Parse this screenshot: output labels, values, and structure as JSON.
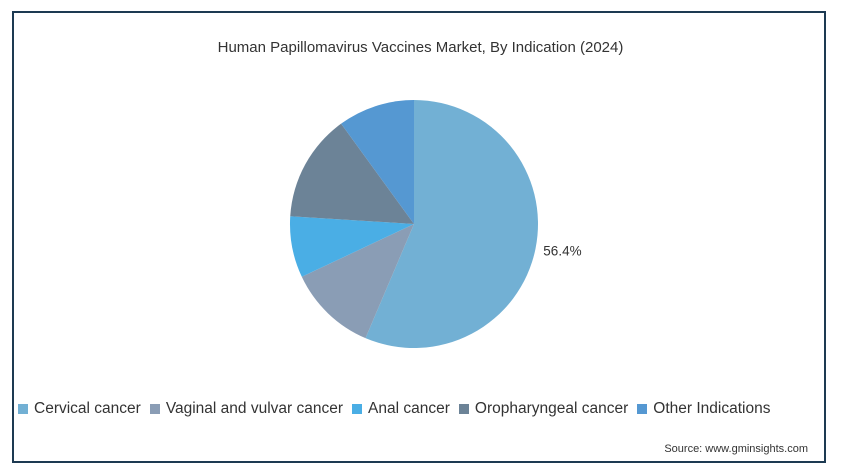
{
  "chart_data": {
    "type": "pie",
    "title": "Human Papillomavirus Vaccines Market, By Indication (2024)",
    "slices": [
      {
        "label": "Cervical cancer",
        "value": 56.4,
        "color": "#72b0d4",
        "data_label": "56.4%"
      },
      {
        "label": "Vaginal and vulvar cancer",
        "value": 11.6,
        "color": "#8a9db5"
      },
      {
        "label": "Anal cancer",
        "value": 8.0,
        "color": "#4aaee5"
      },
      {
        "label": "Oropharyngeal cancer",
        "value": 14.0,
        "color": "#6c8397"
      },
      {
        "label": "Other Indications",
        "value": 10.0,
        "color": "#5598d2"
      }
    ],
    "legend_position": "bottom",
    "source": "Source: www.gminsights.com"
  }
}
